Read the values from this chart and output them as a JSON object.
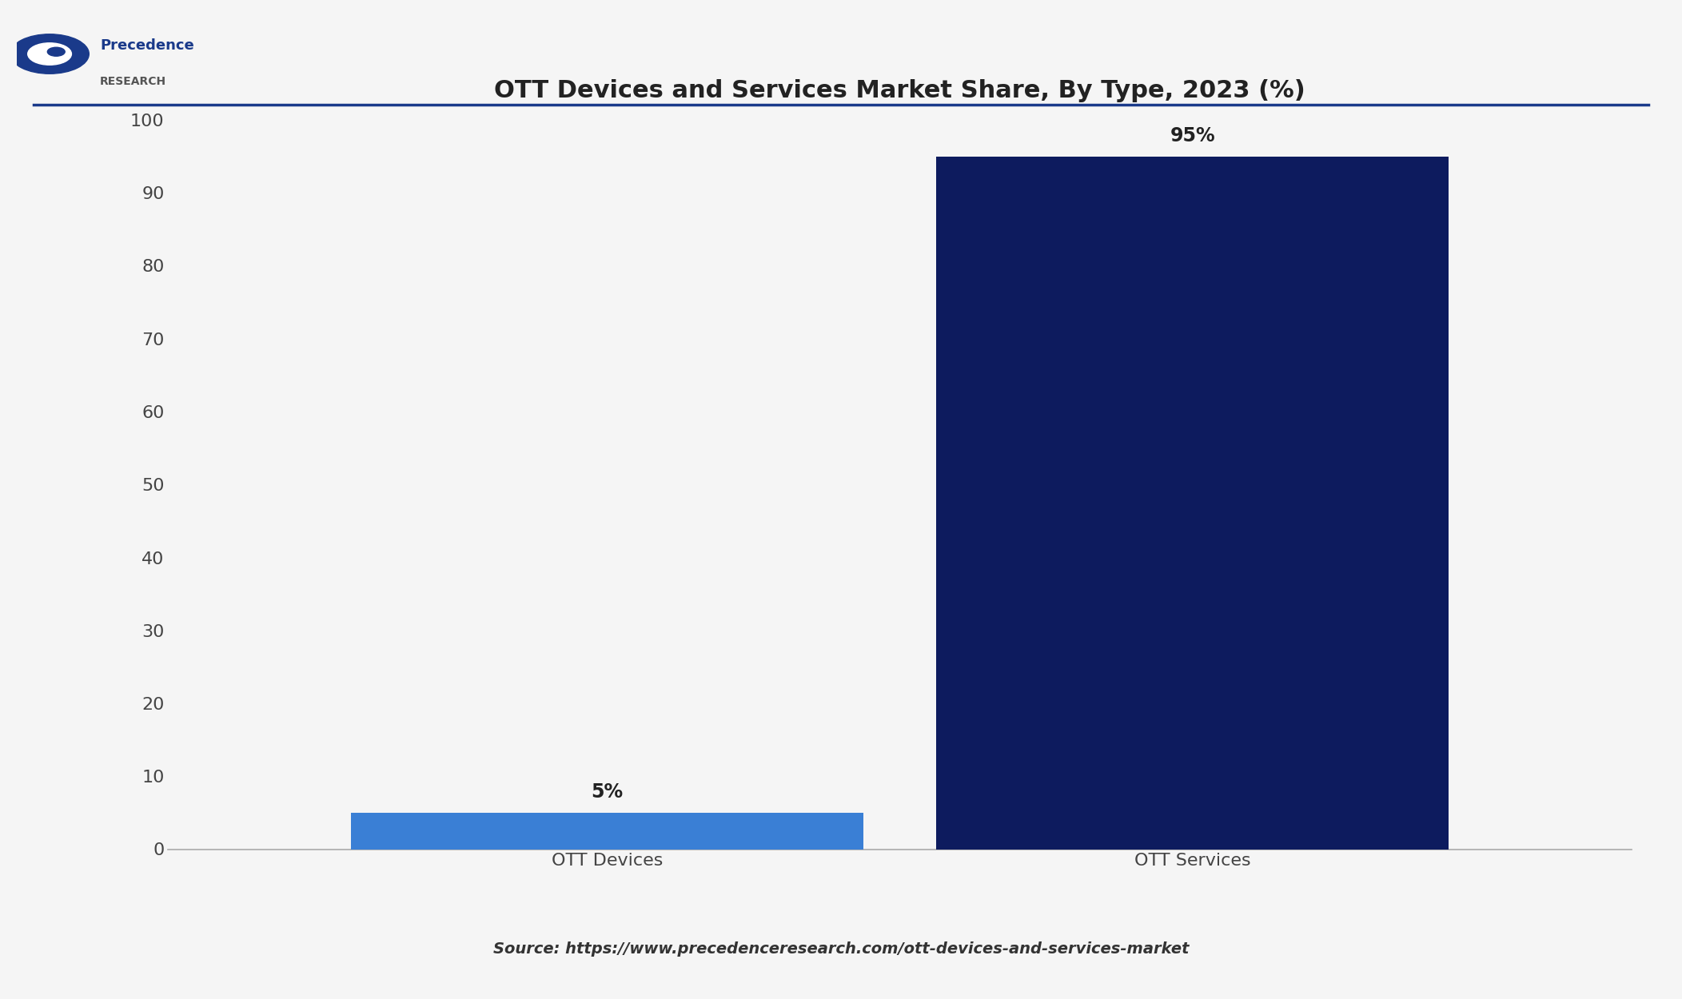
{
  "title": "OTT Devices and Services Market Share, By Type, 2023 (%)",
  "categories": [
    "OTT Devices",
    "OTT Services"
  ],
  "values": [
    5,
    95
  ],
  "bar_colors": [
    "#3a7fd5",
    "#0d1b5e"
  ],
  "bar_labels": [
    "5%",
    "95%"
  ],
  "ylim": [
    0,
    100
  ],
  "yticks": [
    0,
    10,
    20,
    30,
    40,
    50,
    60,
    70,
    80,
    90,
    100
  ],
  "background_color": "#f5f5f5",
  "plot_bg_color": "#f5f5f5",
  "title_fontsize": 22,
  "tick_fontsize": 16,
  "label_fontsize": 16,
  "bar_label_fontsize": 17,
  "source_text": "Source: https://www.precedenceresearch.com/ott-devices-and-services-market",
  "source_fontsize": 14,
  "bar_width": 0.35,
  "title_color": "#222222",
  "tick_color": "#444444",
  "source_color": "#333333",
  "divider_color": "#1a3a8a",
  "logo_text_1": "Precedence",
  "logo_text_2": "RESEARCH"
}
